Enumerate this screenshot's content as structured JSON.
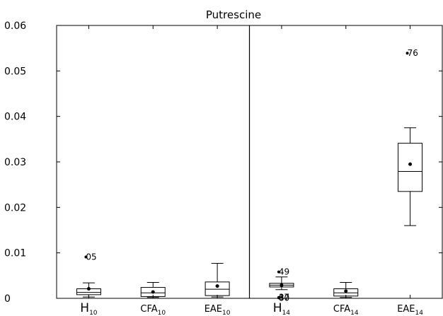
{
  "chart_data": {
    "type": "boxplot",
    "title": "Putrescine",
    "xlabel": "",
    "ylabel": "",
    "ylim": [
      0,
      0.06
    ],
    "yticks": [
      0,
      0.01,
      0.02,
      0.03,
      0.04,
      0.05,
      0.06
    ],
    "ytick_labels": [
      "0",
      "0.01",
      "0.02",
      "0.03",
      "0.04",
      "0.05",
      "0.06"
    ],
    "grid": false,
    "panel_divider_after_group": 3,
    "groups": [
      {
        "base": "H",
        "sub": "10",
        "whisker_low": 0.0003,
        "q1": 0.0008,
        "median": 0.0013,
        "q3": 0.0021,
        "whisker_high": 0.0034,
        "mean": 0.0021,
        "outliers": [
          {
            "value": 0.0091,
            "label": "05"
          }
        ]
      },
      {
        "base": "CFA",
        "sub": "10",
        "whisker_low": 0.0002,
        "q1": 0.0004,
        "median": 0.0012,
        "q3": 0.0024,
        "whisker_high": 0.0035,
        "mean": 0.0014,
        "outliers": []
      },
      {
        "base": "EAE",
        "sub": "10",
        "whisker_low": 0.0003,
        "q1": 0.0006,
        "median": 0.002,
        "q3": 0.0036,
        "whisker_high": 0.0077,
        "mean": 0.0027,
        "outliers": []
      },
      {
        "base": "H",
        "sub": "14",
        "whisker_low": 0.0019,
        "q1": 0.0025,
        "median": 0.0029,
        "q3": 0.0033,
        "whisker_high": 0.0047,
        "mean": 0.0029,
        "outliers": [
          {
            "value": 0.0058,
            "label": "49"
          },
          {
            "value": 0.0002,
            "label": "37"
          },
          {
            "value": 0.0001,
            "label": "80"
          }
        ]
      },
      {
        "base": "CFA",
        "sub": "14",
        "whisker_low": 0.0002,
        "q1": 0.0005,
        "median": 0.0012,
        "q3": 0.0021,
        "whisker_high": 0.0035,
        "mean": 0.0016,
        "outliers": []
      },
      {
        "base": "EAE",
        "sub": "14",
        "whisker_low": 0.016,
        "q1": 0.0235,
        "median": 0.0279,
        "q3": 0.0341,
        "whisker_high": 0.0375,
        "mean": 0.0295,
        "outliers": [
          {
            "value": 0.0539,
            "label": "76"
          }
        ]
      }
    ]
  }
}
